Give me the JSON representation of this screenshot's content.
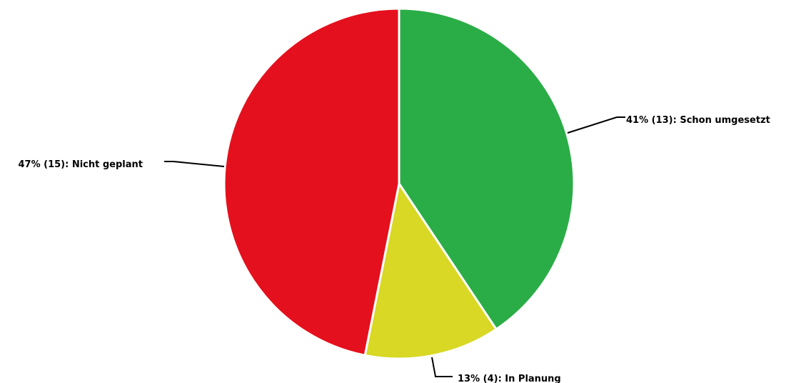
{
  "chart_data": {
    "type": "pie",
    "title": "",
    "slices": [
      {
        "label": "Schon umgesetzt",
        "value": 13,
        "percent": 41,
        "display": "41% (13): Schon umgesetzt",
        "color": "#2aad46"
      },
      {
        "label": "In Planung",
        "value": 4,
        "percent": 13,
        "display": "13% (4): In Planung",
        "color": "#d8d825"
      },
      {
        "label": "Nicht geplant",
        "value": 15,
        "percent": 47,
        "display": "47% (15): Nicht geplant",
        "color": "#e5101d"
      }
    ]
  }
}
